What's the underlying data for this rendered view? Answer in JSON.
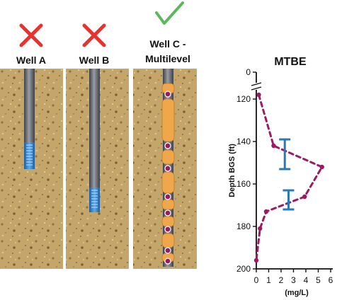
{
  "wells": [
    {
      "label_lines": [
        "Well A"
      ],
      "status": "rejected",
      "status_icon": "red-x-icon",
      "screen": "short-screen-mid-depth"
    },
    {
      "label_lines": [
        "Well B"
      ],
      "status": "rejected",
      "status_icon": "red-x-icon",
      "screen": "short-screen-deep"
    },
    {
      "label_lines": [
        "Well C -",
        "Multilevel"
      ],
      "status": "accepted",
      "status_icon": "green-check-icon",
      "screen": "multilevel-ports"
    }
  ],
  "colors": {
    "x_mark": "#e8322d",
    "check_mark": "#5cb85c",
    "soil": "#c4a66a",
    "casing": "#6f7378",
    "screen": "#3a8fd8",
    "packer": "#f0a64b",
    "port": "#9b1b62",
    "profile_line": "#9b1b62",
    "error_bar": "#2a7ab8"
  },
  "chart_data": {
    "type": "line",
    "title": "MTBE",
    "xlabel": "(mg/L)",
    "ylabel": "Depth BGS (ft)",
    "xlim": [
      0,
      6
    ],
    "x_ticks": [
      0,
      1,
      2,
      3,
      4,
      5,
      6
    ],
    "ylim": [
      200,
      0
    ],
    "y_ticks": [
      0,
      120,
      140,
      160,
      180,
      200
    ],
    "y_axis_break": true,
    "series": [
      {
        "name": "",
        "style": "dashed-dots",
        "points": [
          {
            "x": 0.2,
            "y": 118
          },
          {
            "x": 1.4,
            "y": 142
          },
          {
            "x": 5.3,
            "y": 152
          },
          {
            "x": 3.9,
            "y": 166
          },
          {
            "x": 0.8,
            "y": 173
          },
          {
            "x": 0.3,
            "y": 181
          },
          {
            "x": 0.0,
            "y": 196
          }
        ]
      }
    ],
    "error_bars": [
      {
        "x": 2.3,
        "y_low": 139,
        "y_high": 153
      },
      {
        "x": 2.6,
        "y_low": 163,
        "y_high": 172
      }
    ]
  }
}
